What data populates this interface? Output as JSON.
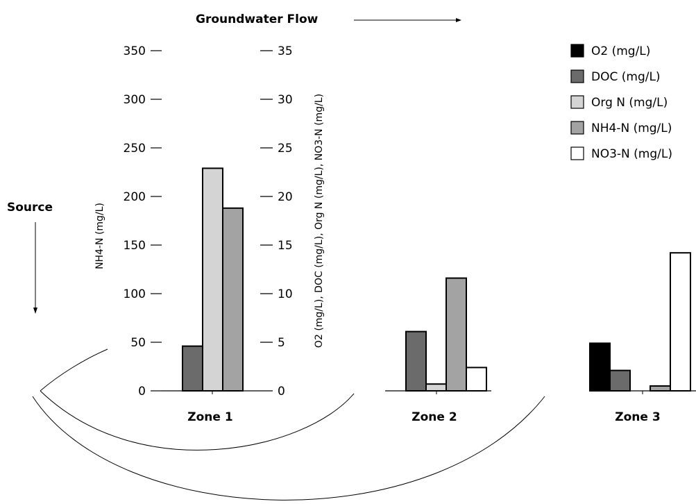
{
  "chart_data": {
    "type": "bar",
    "categories": [
      "Zone 1",
      "Zone 2",
      "Zone 3"
    ],
    "left_axis": {
      "label": "NH4-N (mg/L)",
      "ticks": [
        "350",
        "300",
        "250",
        "200",
        "150",
        "100",
        "50",
        "0"
      ],
      "ylim": [
        0,
        350
      ]
    },
    "right_axis": {
      "label": "O2 (mg/L), DOC (mg/L), Org N (mg/L), NO3-N (mg/L)",
      "ticks": [
        "35",
        "30",
        "25",
        "20",
        "15",
        "10",
        "5",
        "0"
      ],
      "ylim": [
        0,
        35
      ]
    },
    "series": [
      {
        "name": "O2 (mg/L)",
        "axis": "right",
        "color": "#000000",
        "values": [
          0,
          0,
          4.9
        ]
      },
      {
        "name": "DOC (mg/L)",
        "axis": "right",
        "color": "#6b6b6b",
        "values": [
          4.6,
          6.1,
          2.1
        ]
      },
      {
        "name": "Org N (mg/L)",
        "axis": "right",
        "color": "#d4d4d4",
        "values": [
          22.9,
          0.7,
          0
        ]
      },
      {
        "name": "NH4-N (mg/L)",
        "axis": "left",
        "color": "#a3a3a3",
        "values": [
          188,
          116,
          5
        ]
      },
      {
        "name": "NO3-N (mg/L)",
        "axis": "right",
        "color": "#ffffff",
        "values": [
          0,
          2.4,
          14.2
        ]
      }
    ],
    "legend_position": "top-right",
    "grid": false
  },
  "annotations": {
    "flow_label": "Groundwater Flow",
    "source_label": "Source"
  }
}
